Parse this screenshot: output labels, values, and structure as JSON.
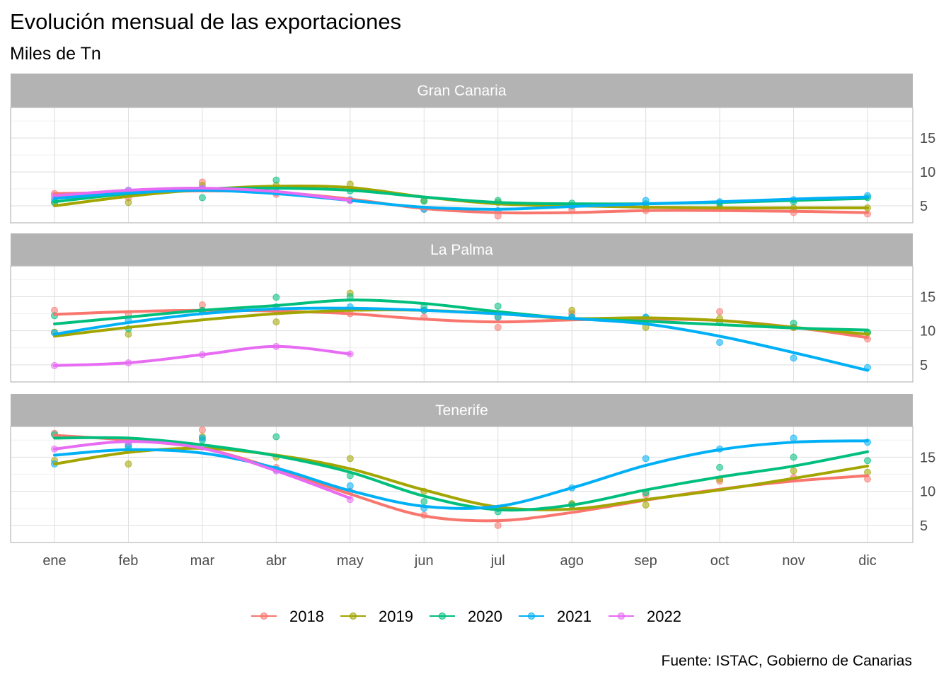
{
  "chart_data": {
    "type": "line",
    "title": "Evolución mensual de las exportaciones",
    "subtitle": "Miles de Tn",
    "caption": "Fuente: ISTAC, Gobierno de Canarias",
    "categories": [
      "ene",
      "feb",
      "mar",
      "abr",
      "may",
      "jun",
      "jul",
      "ago",
      "sep",
      "oct",
      "nov",
      "dic"
    ],
    "y_ticks": [
      5,
      10,
      15
    ],
    "ylim": [
      2.5,
      19.5
    ],
    "grid": true,
    "legend_position": "bottom",
    "colors": {
      "2018": "#F8766D",
      "2019": "#A3A500",
      "2020": "#00BF7D",
      "2021": "#00B0F6",
      "2022": "#E76BF3"
    },
    "legend": [
      "2018",
      "2019",
      "2020",
      "2021",
      "2022"
    ],
    "panels": [
      {
        "name": "Gran Canaria",
        "series": [
          {
            "name": "2018",
            "points": [
              6.8,
              6.2,
              8.5,
              6.7,
              5.8,
              4.5,
              3.5,
              4.5,
              4.3,
              4.8,
              4.0,
              3.8
            ],
            "smooth": [
              6.8,
              7.0,
              7.2,
              7.0,
              6.0,
              4.6,
              4.0,
              4.0,
              4.3,
              4.3,
              4.2,
              4.0
            ]
          },
          {
            "name": "2019",
            "points": [
              5.5,
              5.5,
              8.0,
              8.0,
              8.2,
              5.8,
              5.5,
              5.0,
              4.6,
              4.7,
              4.7,
              4.7
            ],
            "smooth": [
              5.0,
              6.4,
              7.4,
              7.9,
              7.7,
              6.3,
              5.3,
              5.0,
              4.8,
              4.7,
              4.7,
              4.7
            ]
          },
          {
            "name": "2020",
            "points": [
              5.5,
              7.0,
              6.2,
              8.8,
              7.2,
              5.7,
              5.8,
              5.4,
              5.3,
              5.4,
              5.6,
              6.2
            ],
            "smooth": [
              5.6,
              6.8,
              7.5,
              7.6,
              7.3,
              6.3,
              5.5,
              5.3,
              5.3,
              5.5,
              5.8,
              6.1
            ]
          },
          {
            "name": "2021",
            "points": [
              6.0,
              7.3,
              7.5,
              7.0,
              5.9,
              4.5,
              4.3,
              5.0,
              5.8,
              5.6,
              5.9,
              6.5
            ],
            "smooth": [
              6.1,
              6.9,
              7.3,
              6.8,
              5.8,
              4.8,
              4.5,
              4.9,
              5.3,
              5.6,
              6.0,
              6.3
            ]
          },
          {
            "name": "2022",
            "points": [
              6.5,
              7.3,
              7.6,
              7.0,
              5.8
            ],
            "smooth": [
              6.5,
              7.3,
              7.6,
              7.1,
              5.8
            ]
          }
        ]
      },
      {
        "name": "La Palma",
        "series": [
          {
            "name": "2018",
            "points": [
              13.0,
              12.5,
              13.8,
              13.0,
              12.5,
              12.0,
              10.5,
              12.5,
              11.5,
              12.8,
              10.5,
              8.8
            ],
            "smooth": [
              12.4,
              12.8,
              13.0,
              12.9,
              12.5,
              11.7,
              11.3,
              11.6,
              11.7,
              11.5,
              10.5,
              9.0
            ]
          },
          {
            "name": "2019",
            "points": [
              9.8,
              9.5,
              13.0,
              11.3,
              15.5,
              13.0,
              12.0,
              13.0,
              10.5,
              11.8,
              10.5,
              9.7
            ],
            "smooth": [
              9.2,
              10.5,
              11.6,
              12.5,
              13.0,
              13.0,
              12.5,
              11.8,
              11.9,
              11.5,
              10.5,
              9.5
            ]
          },
          {
            "name": "2020",
            "points": [
              12.2,
              10.3,
              13.0,
              14.9,
              15.0,
              13.5,
              13.6,
              12.0,
              11.9,
              11.2,
              11.1,
              9.8
            ],
            "smooth": [
              11.0,
              12.0,
              13.0,
              13.7,
              14.5,
              14.0,
              12.8,
              11.8,
              11.4,
              10.9,
              10.4,
              10.1
            ]
          },
          {
            "name": "2021",
            "points": [
              9.7,
              11.5,
              12.8,
              13.5,
              13.5,
              13.0,
              12.0,
              12.0,
              12.0,
              8.3,
              6.0,
              4.6
            ],
            "smooth": [
              9.5,
              11.2,
              12.5,
              13.2,
              13.3,
              13.0,
              12.5,
              11.8,
              11.0,
              9.2,
              6.8,
              4.2
            ]
          },
          {
            "name": "2022",
            "points": [
              4.9,
              5.3,
              6.5,
              7.7,
              6.6
            ],
            "smooth": [
              4.9,
              5.3,
              6.5,
              7.7,
              6.6
            ]
          }
        ]
      },
      {
        "name": "Tenerife",
        "series": [
          {
            "name": "2018",
            "points": [
              18.5,
              17.5,
              19.0,
              13.5,
              10.0,
              6.5,
              5.0,
              8.0,
              9.5,
              11.5,
              12.0,
              11.8
            ],
            "smooth": [
              18.2,
              17.5,
              16.3,
              13.3,
              9.6,
              6.4,
              5.7,
              6.9,
              8.7,
              10.3,
              11.5,
              12.3
            ]
          },
          {
            "name": "2019",
            "points": [
              14.5,
              14.0,
              18.0,
              15.0,
              14.8,
              10.0,
              7.5,
              8.2,
              8.0,
              11.8,
              13.0,
              12.8
            ],
            "smooth": [
              14.0,
              15.7,
              16.3,
              15.3,
              13.3,
              10.2,
              7.7,
              7.4,
              8.8,
              10.2,
              11.9,
              13.7
            ]
          },
          {
            "name": "2020",
            "points": [
              18.3,
              16.5,
              17.5,
              18.0,
              12.3,
              8.5,
              7.0,
              8.0,
              9.8,
              13.5,
              15.0,
              14.5
            ],
            "smooth": [
              17.8,
              17.8,
              16.8,
              15.2,
              12.8,
              9.3,
              7.3,
              8.0,
              10.2,
              12.1,
              13.7,
              15.8
            ]
          },
          {
            "name": "2021",
            "points": [
              14.0,
              16.8,
              17.8,
              13.2,
              10.8,
              7.5,
              7.5,
              10.5,
              14.8,
              16.2,
              17.8,
              17.2
            ],
            "smooth": [
              15.3,
              16.1,
              15.6,
              13.4,
              10.1,
              7.8,
              7.8,
              10.5,
              13.8,
              16.1,
              17.2,
              17.4
            ]
          },
          {
            "name": "2022",
            "points": [
              16.2,
              17.2,
              16.5,
              13.0,
              8.8
            ],
            "smooth": [
              16.2,
              17.3,
              16.3,
              13.0,
              9.0
            ]
          }
        ]
      }
    ]
  }
}
